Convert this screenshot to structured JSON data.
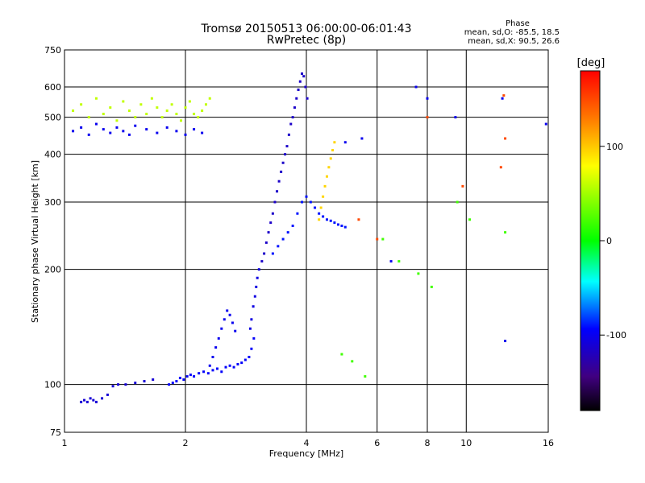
{
  "chart_data": {
    "type": "scatter",
    "title": "Tromsø 20150513 06:00:00-06:01:43",
    "subtitle": "RwPretec (8p)",
    "xlabel": "Frequency [MHz]",
    "ylabel": "Stationary phase Virtual Height [km]",
    "x_scale": "log",
    "y_scale": "log",
    "xlim": [
      1,
      16
    ],
    "ylim": [
      75,
      750
    ],
    "x_ticks": [
      1,
      2,
      4,
      6,
      8,
      10,
      16
    ],
    "y_ticks": [
      75,
      100,
      200,
      300,
      400,
      500,
      600,
      750
    ],
    "grid": true,
    "phase_info": {
      "heading": "Phase",
      "line_o": "mean, sd,O: -85.5, 18.5",
      "line_x": "mean, sd,X: 90.5, 26.6"
    },
    "colorbar": {
      "label": "[deg]",
      "range": [
        -180,
        180
      ],
      "ticks": [
        100,
        0,
        -100
      ],
      "colors": [
        "#ff0000",
        "#ffaa00",
        "#ffff00",
        "#00ff00",
        "#00ffff",
        "#0000ff",
        "#400080",
        "#000000"
      ]
    },
    "series": [
      {
        "phase": -110,
        "x": [
          1.1,
          1.12,
          1.14,
          1.16,
          1.18,
          1.2,
          1.24,
          1.28,
          1.32,
          1.36,
          1.42,
          1.5,
          1.58,
          1.66
        ],
        "y": [
          90,
          91,
          90,
          92,
          91,
          90,
          92,
          94,
          99,
          100,
          100,
          101,
          102,
          103
        ]
      },
      {
        "phase": -95,
        "x": [
          1.82,
          1.86,
          1.9,
          1.94,
          1.98,
          2.02,
          2.06,
          2.1,
          2.16,
          2.22,
          2.28,
          2.34,
          2.4,
          2.46,
          2.52,
          2.58,
          2.64,
          2.7,
          2.76,
          2.82,
          2.88,
          2.92,
          2.96
        ],
        "y": [
          100,
          101,
          102,
          104,
          103,
          105,
          106,
          105,
          107,
          108,
          107,
          109,
          110,
          108,
          111,
          112,
          111,
          113,
          114,
          116,
          118,
          124,
          132
        ]
      },
      {
        "phase": -100,
        "x": [
          2.3,
          2.34,
          2.38,
          2.42,
          2.46,
          2.5,
          2.54,
          2.58,
          2.62,
          2.66
        ],
        "y": [
          112,
          118,
          125,
          132,
          140,
          148,
          156,
          152,
          145,
          138
        ]
      },
      {
        "phase": -105,
        "x": [
          2.9,
          2.92,
          2.95,
          2.98,
          3.0,
          3.02,
          3.05
        ],
        "y": [
          140,
          148,
          160,
          170,
          180,
          190,
          200
        ]
      },
      {
        "phase": -115,
        "x": [
          3.1,
          3.14,
          3.18,
          3.22,
          3.26,
          3.3,
          3.34,
          3.38,
          3.42,
          3.46,
          3.5,
          3.54,
          3.58,
          3.62,
          3.66,
          3.7,
          3.74,
          3.78,
          3.82,
          3.86,
          3.9,
          3.94,
          3.98,
          4.02
        ],
        "y": [
          210,
          220,
          235,
          250,
          265,
          280,
          300,
          320,
          340,
          360,
          380,
          400,
          420,
          450,
          480,
          500,
          530,
          560,
          590,
          620,
          650,
          640,
          600,
          560
        ]
      },
      {
        "phase": -90,
        "x": [
          3.3,
          3.4,
          3.5,
          3.6,
          3.7,
          3.8,
          3.9,
          4.0,
          4.1,
          4.2,
          4.3,
          4.4,
          4.5,
          4.6,
          4.7,
          4.8,
          4.9,
          5.0
        ],
        "y": [
          220,
          230,
          240,
          250,
          260,
          280,
          300,
          310,
          300,
          290,
          280,
          275,
          270,
          268,
          265,
          262,
          260,
          258
        ]
      },
      {
        "phase": 95,
        "x": [
          4.3,
          4.35,
          4.4,
          4.45,
          4.5,
          4.55,
          4.6,
          4.65,
          4.7
        ],
        "y": [
          270,
          290,
          310,
          330,
          350,
          370,
          390,
          410,
          430
        ]
      },
      {
        "phase": 60,
        "x": [
          1.05,
          1.1,
          1.15,
          1.2,
          1.25,
          1.3,
          1.35,
          1.4,
          1.45,
          1.5,
          1.55,
          1.6,
          1.65,
          1.7,
          1.75,
          1.8,
          1.85,
          1.9,
          1.95,
          2.0,
          2.05,
          2.1,
          2.15,
          2.2,
          2.25,
          2.3
        ],
        "y": [
          520,
          540,
          500,
          560,
          510,
          530,
          490,
          550,
          520,
          500,
          540,
          510,
          560,
          530,
          500,
          520,
          540,
          510,
          490,
          530,
          550,
          510,
          500,
          520,
          540,
          560
        ]
      },
      {
        "phase": -100,
        "x": [
          1.05,
          1.1,
          1.15,
          1.2,
          1.25,
          1.3,
          1.35,
          1.4,
          1.45,
          1.5,
          1.6,
          1.7,
          1.8,
          1.9,
          2.0,
          2.1,
          2.2
        ],
        "y": [
          460,
          470,
          450,
          480,
          465,
          455,
          470,
          460,
          450,
          475,
          465,
          455,
          470,
          460,
          450,
          465,
          455
        ]
      },
      {
        "phase": 20,
        "x": [
          4.9,
          5.2,
          5.6,
          6.2,
          6.8,
          7.6,
          8.2,
          9.5,
          10.2,
          12.5
        ],
        "y": [
          120,
          115,
          105,
          240,
          210,
          195,
          180,
          300,
          270,
          250
        ]
      },
      {
        "phase": -100,
        "x": [
          5.0,
          5.5,
          6.5,
          7.5,
          8.0,
          9.4,
          12.3,
          12.5,
          15.8
        ],
        "y": [
          430,
          440,
          210,
          600,
          560,
          500,
          560,
          130,
          480
        ]
      },
      {
        "phase": 150,
        "x": [
          5.4,
          6.0,
          8.0,
          9.8,
          12.2,
          12.4,
          12.5
        ],
        "y": [
          270,
          240,
          500,
          330,
          370,
          570,
          440
        ]
      }
    ]
  }
}
